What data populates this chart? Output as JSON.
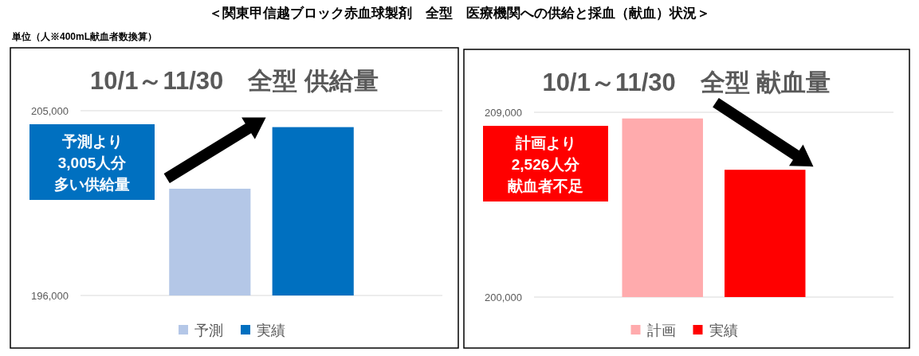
{
  "chart_data": [
    {
      "type": "bar",
      "title": "10/1～11/30　全型 供給量",
      "categories": [
        null
      ],
      "series": [
        {
          "name": "予測",
          "color": "#b4c7e7",
          "values": [
            201200
          ]
        },
        {
          "name": "実績",
          "color": "#0070c0",
          "values": [
            204200
          ]
        }
      ],
      "ylim": [
        196000,
        205000
      ],
      "yticks": [
        {
          "value": 196000,
          "label": "196,000"
        },
        {
          "value": 205000,
          "label": "205,000"
        }
      ],
      "grid": "y",
      "legend": "bottom",
      "annotations": [
        "＜関東甲信越ブロック赤血球製剤　全型　医療機関への供給と採血（献血）状況＞",
        "単位（人※400mL献血者数換算）",
        "予測より",
        "3,005人分",
        "多い供給量"
      ]
    },
    {
      "type": "bar",
      "title": "10/1～11/30　全型 献血量",
      "categories": [
        null
      ],
      "series": [
        {
          "name": "計画",
          "color": "#ffabad",
          "values": [
            208700
          ]
        },
        {
          "name": "実績",
          "color": "#ff0000",
          "values": [
            206200
          ]
        }
      ],
      "ylim": [
        200000,
        209000
      ],
      "yticks": [
        {
          "value": 200000,
          "label": "200,000"
        },
        {
          "value": 209000,
          "label": "209,000"
        }
      ],
      "grid": "y",
      "legend": "bottom",
      "annotations": [
        "計画より",
        "2,526人分",
        "献血者不足"
      ]
    }
  ]
}
